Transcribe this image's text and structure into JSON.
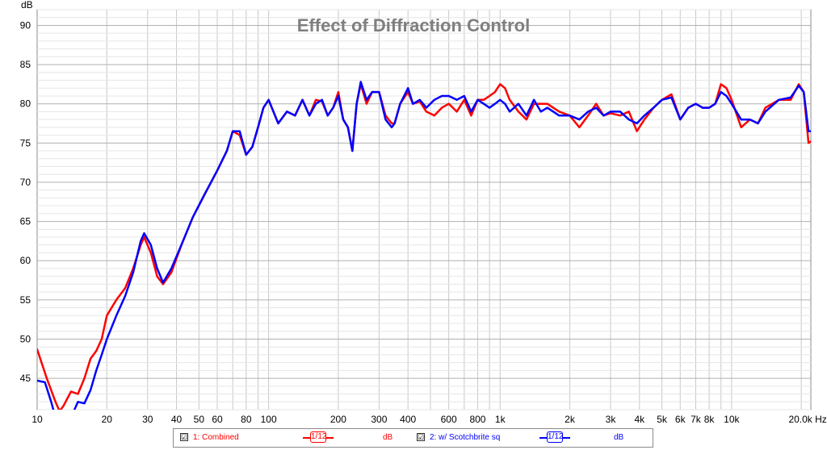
{
  "chart_data": {
    "type": "line",
    "title": "Effect of Diffraction Control",
    "xlabel": "Hz",
    "ylabel": "dB",
    "xscale": "log",
    "xlim": [
      10,
      22000
    ],
    "ylim": [
      41,
      92
    ],
    "x_ticks": [
      10,
      20,
      30,
      40,
      50,
      60,
      80,
      100,
      200,
      300,
      400,
      600,
      800,
      1000,
      2000,
      3000,
      4000,
      5000,
      6000,
      7000,
      8000,
      10000,
      20000
    ],
    "x_tick_labels": [
      "10",
      "20",
      "30",
      "40",
      "50",
      "60",
      "80",
      "100",
      "200",
      "300",
      "400",
      "600",
      "800",
      "1k",
      "2k",
      "3k",
      "4k",
      "5k",
      "6k",
      "7k",
      "8k",
      "10k",
      "20.0k Hz"
    ],
    "y_ticks": [
      45,
      50,
      55,
      60,
      65,
      70,
      75,
      80,
      85,
      90
    ],
    "y_tick_labels": [
      "45",
      "50",
      "55",
      "60",
      "65",
      "70",
      "75",
      "80",
      "85",
      "90"
    ],
    "grid": true,
    "legend_position": "bottom",
    "series": [
      {
        "name": "1: Combined",
        "color": "#ff0000",
        "smoothing": "1/12",
        "units": "dB",
        "x": [
          10,
          11,
          12,
          12.5,
          13,
          14,
          15,
          16,
          17,
          18,
          19,
          20,
          22,
          24,
          26,
          28,
          29,
          31,
          33,
          35,
          38,
          42,
          47,
          53,
          60,
          66,
          70,
          75,
          80,
          85,
          90,
          95,
          100,
          110,
          120,
          130,
          140,
          150,
          160,
          170,
          180,
          190,
          200,
          210,
          220,
          230,
          240,
          250,
          265,
          280,
          300,
          320,
          340,
          350,
          370,
          400,
          420,
          450,
          480,
          520,
          560,
          600,
          650,
          700,
          750,
          800,
          850,
          900,
          950,
          1000,
          1050,
          1100,
          1200,
          1300,
          1400,
          1500,
          1600,
          1800,
          2000,
          2200,
          2400,
          2600,
          2800,
          3000,
          3300,
          3600,
          3900,
          4200,
          4600,
          5000,
          5500,
          6000,
          6500,
          7000,
          7500,
          8000,
          8500,
          9000,
          9500,
          10000,
          11000,
          12000,
          13000,
          14000,
          16000,
          18000,
          19500,
          20500,
          21500,
          22000
        ],
        "y": [
          48.7,
          45,
          42,
          40.8,
          41.5,
          43.3,
          43,
          45,
          47.5,
          48.5,
          50,
          53,
          55,
          56.5,
          59,
          62,
          63,
          61,
          58,
          57,
          58.5,
          62,
          65.5,
          68.5,
          71.5,
          74,
          76.5,
          76,
          73.5,
          74.5,
          77,
          79.5,
          80.5,
          77.5,
          79,
          78.5,
          80.5,
          78.5,
          80.5,
          80.3,
          78.5,
          79.5,
          81.5,
          78,
          77,
          74,
          80,
          82.5,
          80,
          81.5,
          81.5,
          78.5,
          77.5,
          77.5,
          80,
          81.5,
          80,
          80.3,
          79,
          78.5,
          79.5,
          80,
          79,
          80.5,
          78.5,
          80.5,
          80.5,
          81,
          81.5,
          82.5,
          82,
          80.5,
          79,
          78,
          80,
          80,
          80,
          79,
          78.5,
          77,
          78.5,
          80,
          78.5,
          78.8,
          78.5,
          79,
          76.5,
          78,
          79.5,
          80.5,
          81.2,
          78,
          79.5,
          80,
          79.5,
          79.5,
          80,
          82.5,
          82,
          80.5,
          77,
          78,
          77.5,
          79.5,
          80.5,
          80.5,
          82.5,
          81.5,
          75,
          75.2
        ]
      },
      {
        "name": "2: w/ Scotchbrite sq",
        "color": "#0000ff",
        "smoothing": "1/12",
        "units": "dB",
        "x": [
          10,
          10.8,
          11.5,
          12,
          13,
          14,
          15,
          16,
          17,
          18,
          19,
          20,
          22,
          24,
          26,
          28,
          29,
          31,
          33,
          35,
          38,
          42,
          47,
          53,
          60,
          66,
          70,
          75,
          80,
          85,
          90,
          95,
          100,
          110,
          120,
          130,
          140,
          150,
          160,
          170,
          180,
          190,
          200,
          210,
          220,
          230,
          240,
          250,
          265,
          280,
          300,
          320,
          340,
          350,
          370,
          400,
          420,
          450,
          480,
          520,
          560,
          600,
          650,
          700,
          750,
          800,
          850,
          900,
          950,
          1000,
          1050,
          1100,
          1200,
          1300,
          1400,
          1500,
          1600,
          1800,
          2000,
          2200,
          2400,
          2600,
          2800,
          3000,
          3300,
          3600,
          3900,
          4200,
          4600,
          5000,
          5500,
          6000,
          6500,
          7000,
          7500,
          8000,
          8500,
          9000,
          9500,
          10000,
          11000,
          12000,
          13000,
          14000,
          16000,
          18000,
          19500,
          20500,
          21500,
          22000
        ],
        "y": [
          44.7,
          44.5,
          42,
          40,
          38.5,
          40,
          42,
          41.8,
          43.5,
          46,
          48,
          50,
          53,
          55.5,
          58.5,
          62.5,
          63.5,
          62,
          59,
          57.2,
          59,
          62,
          65.5,
          68.5,
          71.5,
          74,
          76.5,
          76.5,
          73.5,
          74.5,
          77,
          79.5,
          80.5,
          77.5,
          79,
          78.5,
          80.5,
          78.5,
          80,
          80.5,
          78.5,
          79.5,
          81,
          78,
          77,
          74,
          80,
          82.8,
          80.5,
          81.5,
          81.5,
          78,
          77,
          77.5,
          80,
          82,
          80,
          80.5,
          79.5,
          80.5,
          81,
          81,
          80.5,
          81,
          79,
          80.5,
          80,
          79.5,
          80,
          80.5,
          80,
          79,
          80,
          78.5,
          80.5,
          79,
          79.5,
          78.5,
          78.5,
          78,
          79,
          79.5,
          78.5,
          79,
          79,
          78,
          77.5,
          78.5,
          79.5,
          80.5,
          80.8,
          78,
          79.5,
          80,
          79.5,
          79.5,
          80,
          81.5,
          81,
          80,
          78,
          78,
          77.5,
          79,
          80.5,
          80.8,
          82.3,
          81.5,
          76.5,
          76.5
        ]
      }
    ]
  },
  "legend": {
    "items": [
      {
        "label": "1: Combined",
        "checked": "☑",
        "smoothing_label": "1/12",
        "units": "dB",
        "color": "#ff0000"
      },
      {
        "label": "2: w/ Scotchbrite sq",
        "checked": "☑",
        "smoothing_label": "1/12",
        "units": "dB",
        "color": "#0000ff"
      }
    ]
  }
}
